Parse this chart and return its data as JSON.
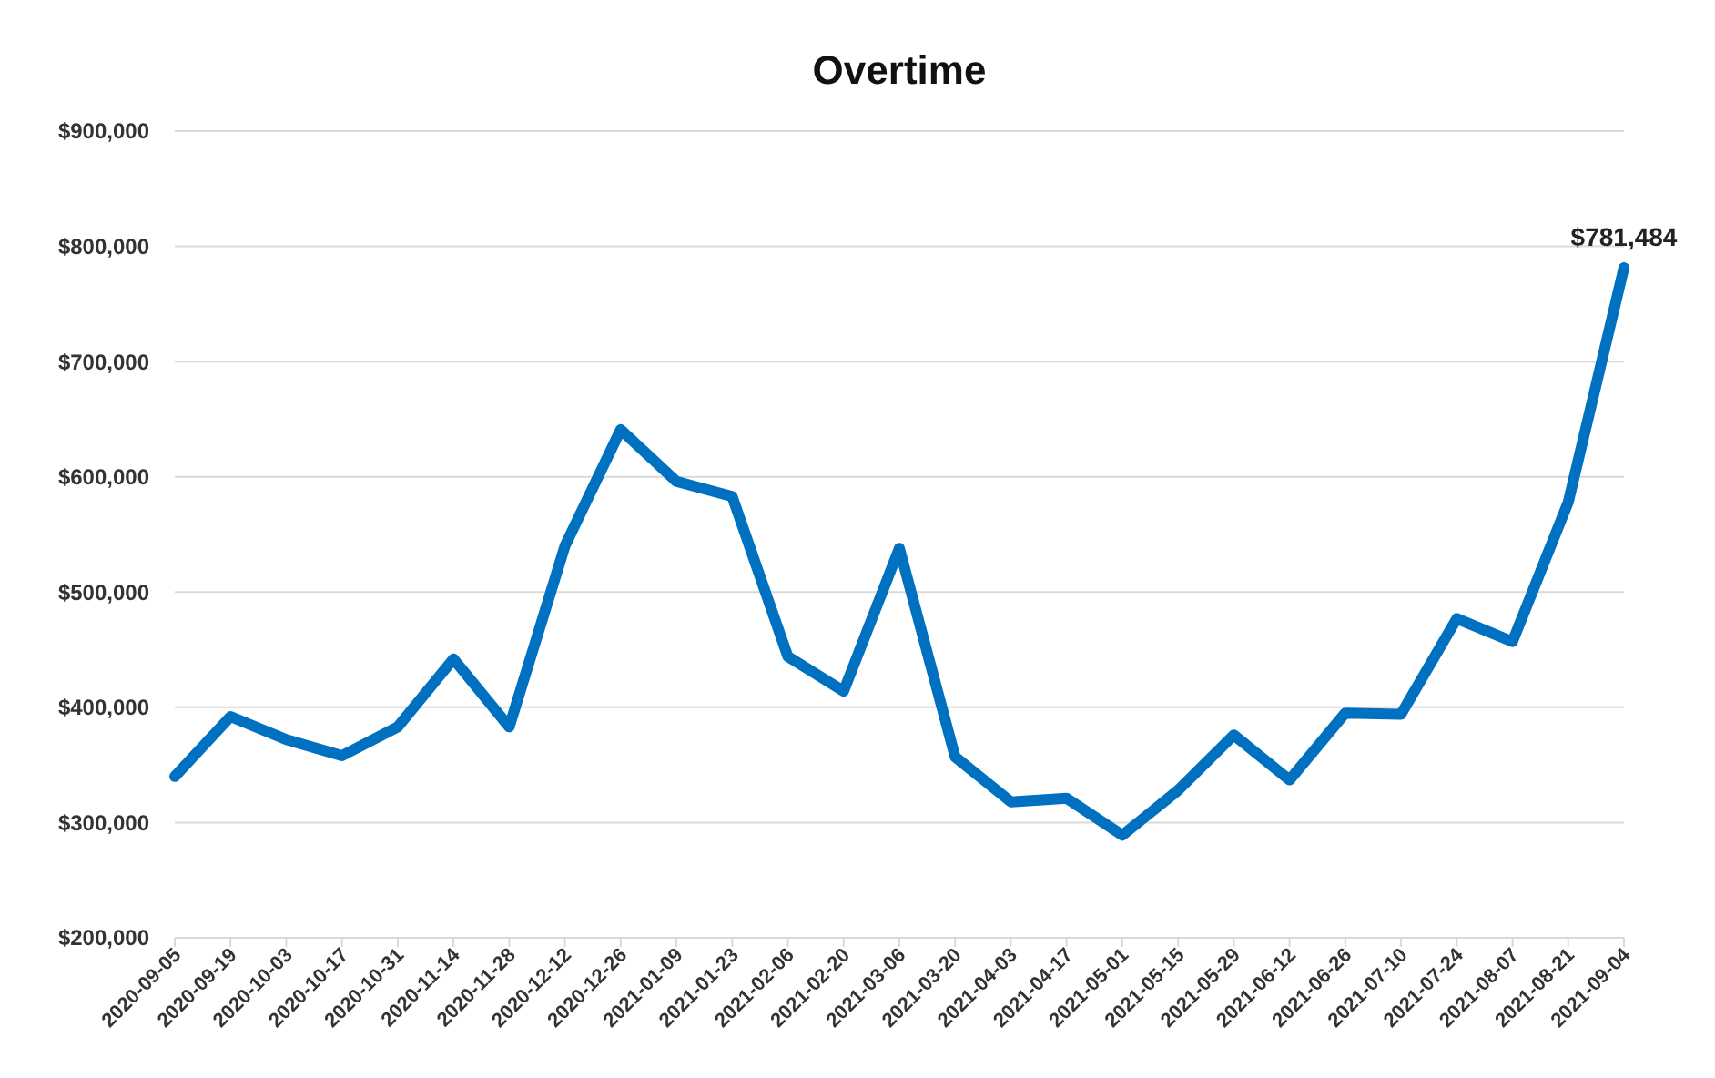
{
  "chart_data": {
    "type": "line",
    "title": "Overtime",
    "categories": [
      "2020-09-05",
      "2020-09-19",
      "2020-10-03",
      "2020-10-17",
      "2020-10-31",
      "2020-11-14",
      "2020-11-28",
      "2020-12-12",
      "2020-12-26",
      "2021-01-09",
      "2021-01-23",
      "2021-02-06",
      "2021-02-20",
      "2021-03-06",
      "2021-03-20",
      "2021-04-03",
      "2021-04-17",
      "2021-05-01",
      "2021-05-15",
      "2021-05-29",
      "2021-06-12",
      "2021-06-26",
      "2021-07-10",
      "2021-07-24",
      "2021-08-07",
      "2021-08-21",
      "2021-09-04"
    ],
    "series": [
      {
        "color": "#0070c0",
        "values": [
          340000,
          392000,
          372000,
          358000,
          383000,
          442000,
          383000,
          540000,
          641000,
          596000,
          583000,
          444000,
          414000,
          538000,
          357000,
          318000,
          321000,
          289000,
          328000,
          376000,
          337000,
          395000,
          394000,
          477000,
          457000,
          578000,
          781484
        ],
        "value_labels": [
          null,
          null,
          null,
          null,
          null,
          null,
          null,
          null,
          null,
          null,
          null,
          null,
          null,
          null,
          null,
          null,
          null,
          null,
          null,
          null,
          null,
          null,
          null,
          null,
          null,
          null,
          "$781,484"
        ]
      }
    ],
    "ylim": [
      200000,
      900000
    ],
    "yticks": [
      {
        "value": 200000,
        "label": "$200,000"
      },
      {
        "value": 300000,
        "label": "$300,000"
      },
      {
        "value": 400000,
        "label": "$400,000"
      },
      {
        "value": 500000,
        "label": "$500,000"
      },
      {
        "value": 600000,
        "label": "$600,000"
      },
      {
        "value": 700000,
        "label": "$700,000"
      },
      {
        "value": 800000,
        "label": "$800,000"
      },
      {
        "value": 900000,
        "label": "$900,000"
      }
    ],
    "grid": "y",
    "marker": "none",
    "line_style": "solid"
  }
}
